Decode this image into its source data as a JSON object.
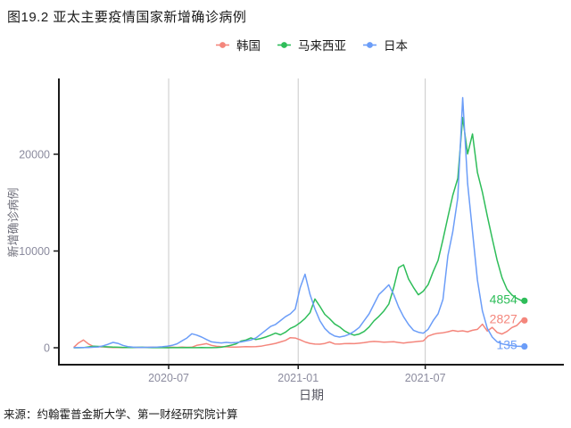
{
  "page": {
    "source": "来源：约翰霍普金斯大学、第一财经研究院计算"
  },
  "chart_data": {
    "type": "line",
    "title": "图19.2 亚太主要疫情国家新增确诊病例",
    "xlabel": "日期",
    "ylabel": "新增确诊病例",
    "x_start_date": "2020-02-17",
    "x_step_days": 7,
    "x_ticks": [
      {
        "label": "2020-07",
        "week": 19.3
      },
      {
        "label": "2021-01",
        "week": 45.6
      },
      {
        "label": "2021-07",
        "week": 71.4
      }
    ],
    "y_ticks": [
      {
        "label": "0",
        "value": 0
      },
      {
        "label": "10000",
        "value": 10000
      },
      {
        "label": "20000",
        "value": 20000
      }
    ],
    "ylim": [
      -1800,
      27800
    ],
    "grid": "vertical-only",
    "legend_position": "top-center",
    "colors": {
      "axis_text": "#8b8b9e",
      "axis_title": "#6e6e7a",
      "gridline": "#c9c9c9",
      "axis_line": "#1a1a1a"
    },
    "series": [
      {
        "name": "韩国",
        "color": "#F4867C",
        "end_label": "2827",
        "values": [
          30,
          500,
          800,
          400,
          130,
          100,
          95,
          50,
          30,
          15,
          10,
          18,
          27,
          39,
          28,
          42,
          52,
          43,
          63,
          45,
          58,
          34,
          61,
          43,
          56,
          246,
          332,
          424,
          248,
          151,
          113,
          88,
          72,
          77,
          92,
          108,
          97,
          122,
          158,
          255,
          349,
          452,
          603,
          754,
          1046,
          1002,
          823,
          598,
          452,
          381,
          369,
          447,
          602,
          398,
          382,
          424,
          444,
          428,
          473,
          524,
          605,
          652,
          617,
          577,
          603,
          622,
          548,
          479,
          553,
          598,
          652,
          705,
          1210,
          1395,
          1505,
          1548,
          1652,
          1784,
          1698,
          1752,
          1648,
          1804,
          1902,
          2434,
          1720,
          2111,
          1583,
          1421,
          1684,
          2096,
          2304,
          2827
        ]
      },
      {
        "name": "马来西亚",
        "color": "#2EBD59",
        "end_label": "4854",
        "values": [
          0,
          0,
          6,
          83,
          153,
          138,
          117,
          94,
          68,
          52,
          41,
          28,
          24,
          43,
          57,
          19,
          12,
          8,
          6,
          4,
          7,
          11,
          13,
          14,
          11,
          9,
          14,
          12,
          13,
          21,
          52,
          156,
          263,
          405,
          691,
          805,
          1012,
          846,
          957,
          1103,
          1304,
          1512,
          1341,
          1607,
          1998,
          2234,
          2593,
          3027,
          3631,
          5037,
          4284,
          3455,
          2998,
          2461,
          2154,
          1739,
          1476,
          1304,
          1416,
          1687,
          2148,
          2786,
          3243,
          3807,
          4512,
          6231,
          8290,
          8574,
          7105,
          6241,
          5472,
          5841,
          6527,
          7859,
          9020,
          11187,
          13504,
          15764,
          17505,
          23804,
          20028,
          22100,
          18125,
          16073,
          13612,
          11288,
          9047,
          7241,
          6034,
          5446,
          5108,
          4854
        ]
      },
      {
        "name": "日本",
        "color": "#6B9DF8",
        "end_label": "135",
        "values": [
          12,
          18,
          22,
          31,
          54,
          85,
          204,
          356,
          557,
          448,
          247,
          118,
          62,
          41,
          36,
          47,
          58,
          63,
          104,
          153,
          247,
          404,
          706,
          1009,
          1448,
          1306,
          1102,
          847,
          604,
          548,
          496,
          552,
          503,
          547,
          601,
          704,
          801,
          1005,
          1403,
          1804,
          2203,
          2406,
          2803,
          3204,
          3506,
          4004,
          6204,
          7604,
          5503,
          4006,
          2804,
          2003,
          1504,
          1203,
          1104,
          1203,
          1404,
          1703,
          2104,
          2803,
          3504,
          4503,
          5504,
          6004,
          6504,
          5504,
          4203,
          3203,
          2404,
          1804,
          1603,
          1504,
          1904,
          2803,
          3504,
          5004,
          9504,
          12004,
          15504,
          25851,
          17004,
          12004,
          7004,
          3804,
          2004,
          1104,
          604,
          404,
          304,
          224,
          168,
          135
        ]
      }
    ]
  }
}
